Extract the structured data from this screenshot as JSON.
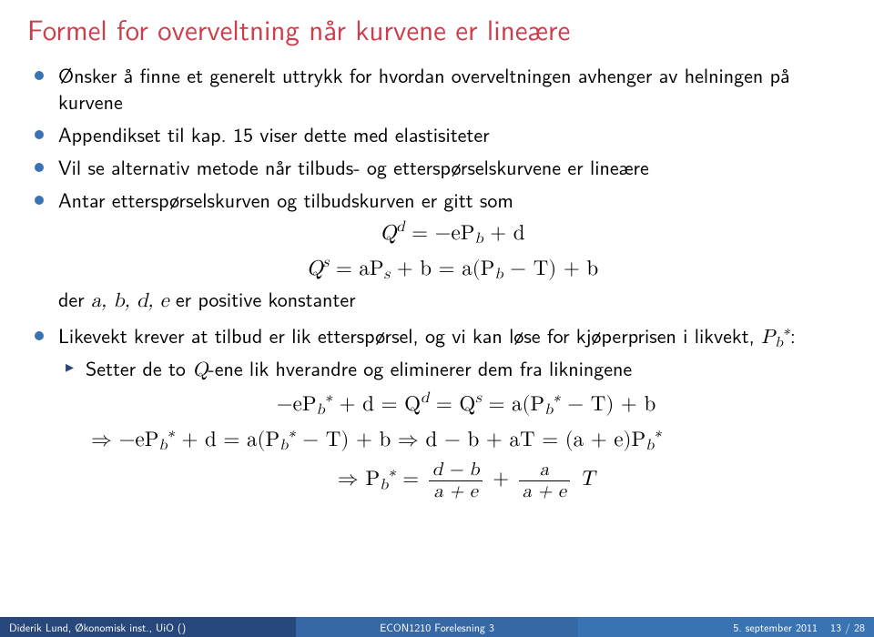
{
  "colors": {
    "title": "#cd3d4b",
    "bullet": "#3973b2",
    "subarrow": "#28477a",
    "footer_left_bg": "#28477a",
    "footer_mid_bg": "#3668a6",
    "footer_right_bg": "#3973b2",
    "footer_text": "#ffffff"
  },
  "title": "Formel for overveltning når kurvene er lineære",
  "bullets": {
    "b1": "Ønsker å finne et generelt uttrykk for hvordan overveltningen avhenger av helningen på kurvene",
    "b2": "Appendikset til kap. 15 viser dette med elastisiteter",
    "b3": "Vil se alternativ metode når tilbuds- og etterspørselskurvene er lineære",
    "b4a": "Antar etterspørselskurven og tilbudskurven er gitt som",
    "b4_const_prefix": "der ",
    "b4_const_vars": "a, b, d, e",
    "b4_const_suffix": " er positive konstanter",
    "b5a": "Likevekt krever at tilbud er lik etterspørsel, og vi kan løse for kjøperprisen i likvekt, ",
    "b5_sym": "P",
    "b5b": ":",
    "s1": "Setter de to ",
    "s1q": "Q",
    "s1b": "-ene lik hverandre og eliminerer dem fra likningene"
  },
  "math": {
    "eq1": "Q",
    "eq1_sup": "d",
    "eq1_rhs_a": " = −eP",
    "eq1_rhs_b": " + d",
    "eq2_lhs": "Q",
    "eq2_sup": "s",
    "eq2_mid": " = aP",
    "eq2_mid2": " + b = a(P",
    "eq2_rhs": " − T) + b",
    "line1_a": "−eP",
    "line1_b": " + d = Q",
    "line1_c": " = Q",
    "line1_d": " = a(P",
    "line1_e": " − T) + b",
    "line2_pre": "⇒   −eP",
    "line2_mid": " + d = a(P",
    "line2_mid2": " − T) + b    ⇒    d − b + aT = (a + e)P",
    "line3_pre": "⇒   P",
    "line3_eq": " = ",
    "frac1_num": "d − b",
    "frac1_den": "a + e",
    "line3_plus": " + ",
    "frac2_num": "a",
    "frac2_den": "a + e",
    "line3_T": " T",
    "sub_b": "b",
    "sub_s": "s",
    "star": "∗"
  },
  "footer": {
    "left": "Diderik Lund, Økonomisk inst., UiO ()",
    "mid": "ECON1210 Forelesning 3",
    "right_date": "5. september 2011",
    "right_page": "13 / 28"
  }
}
